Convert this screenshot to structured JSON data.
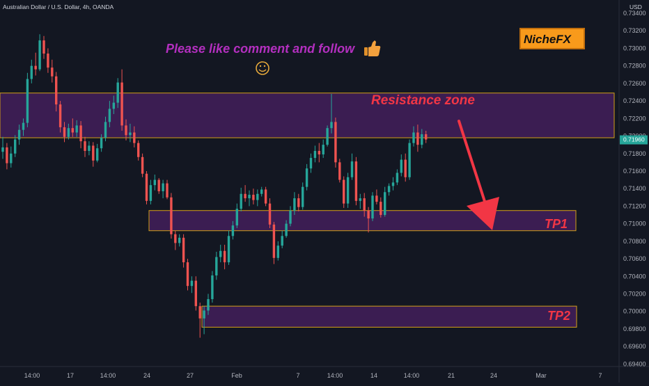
{
  "header": {
    "symbol_title": "Australian Dollar / U.S. Dollar, 4h, OANDA",
    "currency": "USD"
  },
  "annotations": {
    "cta": "Please like comment and follow",
    "thumbs_icon": "thumbs-up",
    "smile_icon": "smiley-face",
    "brand": "NicheFX",
    "resistance": "Resistance zone",
    "tp1": "TP1",
    "tp2": "TP2"
  },
  "current_price_label": "0.71960",
  "colors": {
    "background": "#131722",
    "up": "#26a69a",
    "down": "#ef5350",
    "zone_fill": "#4a2063",
    "zone_border": "#d4a017",
    "cta_text": "#b32fbf",
    "zone_text": "#f23645",
    "brand_text": "#111111",
    "brand_bg": "#f89a1b",
    "arrow": "#f23645",
    "grid": "#1e222d"
  },
  "chart_data": {
    "type": "candlestick",
    "title": "Australian Dollar / U.S. Dollar, 4h, OANDA",
    "y_unit": "USD",
    "ylim": [
      0.6932,
      0.7352
    ],
    "y_ticks": [
      "0.73400",
      "0.73200",
      "0.73000",
      "0.72800",
      "0.72600",
      "0.72400",
      "0.72200",
      "0.72000",
      "0.71800",
      "0.71600",
      "0.71400",
      "0.71200",
      "0.71000",
      "0.70800",
      "0.70600",
      "0.70400",
      "0.70200",
      "0.70000",
      "0.69800",
      "0.69600",
      "0.69400"
    ],
    "x_ticks": [
      "14:00",
      "17",
      "14:00",
      "24",
      "27",
      "Feb",
      "7",
      "14:00",
      "14",
      "14:00",
      "21",
      "24",
      "Mar",
      "7"
    ],
    "grid": false,
    "ohlc": [
      [
        0.7182,
        0.7199,
        0.7174,
        0.7187
      ],
      [
        0.7187,
        0.7192,
        0.7162,
        0.7169
      ],
      [
        0.7169,
        0.7188,
        0.7164,
        0.718
      ],
      [
        0.718,
        0.7201,
        0.7176,
        0.7196
      ],
      [
        0.7196,
        0.7213,
        0.719,
        0.7207
      ],
      [
        0.7207,
        0.722,
        0.72,
        0.7215
      ],
      [
        0.7215,
        0.7272,
        0.721,
        0.7265
      ],
      [
        0.7265,
        0.7287,
        0.726,
        0.728
      ],
      [
        0.728,
        0.7295,
        0.7269,
        0.7276
      ],
      [
        0.7276,
        0.7316,
        0.7274,
        0.7309
      ],
      [
        0.7309,
        0.7314,
        0.7288,
        0.7294
      ],
      [
        0.7294,
        0.73,
        0.7272,
        0.7278
      ],
      [
        0.7278,
        0.7287,
        0.7261,
        0.7268
      ],
      [
        0.7268,
        0.7273,
        0.7228,
        0.7236
      ],
      [
        0.7236,
        0.724,
        0.7204,
        0.721
      ],
      [
        0.721,
        0.7216,
        0.7193,
        0.7199
      ],
      [
        0.7199,
        0.7214,
        0.7196,
        0.7209
      ],
      [
        0.7209,
        0.722,
        0.7199,
        0.7204
      ],
      [
        0.7204,
        0.7218,
        0.7199,
        0.7212
      ],
      [
        0.7212,
        0.7217,
        0.7186,
        0.7194
      ],
      [
        0.7194,
        0.7199,
        0.7176,
        0.7183
      ],
      [
        0.7183,
        0.7194,
        0.7178,
        0.7189
      ],
      [
        0.7189,
        0.7193,
        0.7165,
        0.7172
      ],
      [
        0.7172,
        0.7191,
        0.717,
        0.7186
      ],
      [
        0.7186,
        0.7202,
        0.7182,
        0.7198
      ],
      [
        0.7198,
        0.7222,
        0.7194,
        0.7216
      ],
      [
        0.7216,
        0.724,
        0.721,
        0.7231
      ],
      [
        0.7231,
        0.7246,
        0.7225,
        0.7238
      ],
      [
        0.7238,
        0.7266,
        0.7232,
        0.7261
      ],
      [
        0.7261,
        0.7276,
        0.7206,
        0.7212
      ],
      [
        0.7212,
        0.7219,
        0.7195,
        0.7201
      ],
      [
        0.7201,
        0.7214,
        0.7193,
        0.7204
      ],
      [
        0.7204,
        0.7211,
        0.7187,
        0.7192
      ],
      [
        0.7192,
        0.7195,
        0.7172,
        0.7176
      ],
      [
        0.7176,
        0.718,
        0.7153,
        0.7157
      ],
      [
        0.7157,
        0.716,
        0.7122,
        0.7126
      ],
      [
        0.7126,
        0.715,
        0.7122,
        0.7144
      ],
      [
        0.7144,
        0.7156,
        0.7138,
        0.715
      ],
      [
        0.715,
        0.7152,
        0.7134,
        0.7137
      ],
      [
        0.7137,
        0.715,
        0.7129,
        0.7146
      ],
      [
        0.7146,
        0.715,
        0.7128,
        0.713
      ],
      [
        0.713,
        0.7135,
        0.7083,
        0.7088
      ],
      [
        0.7088,
        0.7092,
        0.707,
        0.7078
      ],
      [
        0.7078,
        0.7088,
        0.7074,
        0.7084
      ],
      [
        0.7084,
        0.7088,
        0.705,
        0.7056
      ],
      [
        0.7056,
        0.706,
        0.7024,
        0.7029
      ],
      [
        0.7029,
        0.704,
        0.7021,
        0.7035
      ],
      [
        0.7035,
        0.704,
        0.7001,
        0.7006
      ],
      [
        0.7006,
        0.701,
        0.697,
        0.6992
      ],
      [
        0.6992,
        0.7006,
        0.6974,
        0.7001
      ],
      [
        0.7001,
        0.702,
        0.6996,
        0.7014
      ],
      [
        0.7014,
        0.7046,
        0.701,
        0.7041
      ],
      [
        0.7041,
        0.7068,
        0.7036,
        0.7062
      ],
      [
        0.7062,
        0.7076,
        0.7056,
        0.7069
      ],
      [
        0.7069,
        0.7076,
        0.7048,
        0.7056
      ],
      [
        0.7056,
        0.7092,
        0.7053,
        0.7086
      ],
      [
        0.7086,
        0.7103,
        0.7082,
        0.7098
      ],
      [
        0.7098,
        0.7123,
        0.7095,
        0.7117
      ],
      [
        0.7117,
        0.7141,
        0.7114,
        0.7134
      ],
      [
        0.7134,
        0.7144,
        0.7125,
        0.7129
      ],
      [
        0.7129,
        0.7138,
        0.712,
        0.7133
      ],
      [
        0.7133,
        0.714,
        0.7122,
        0.7127
      ],
      [
        0.7127,
        0.7139,
        0.712,
        0.7134
      ],
      [
        0.7134,
        0.7142,
        0.7131,
        0.7139
      ],
      [
        0.7139,
        0.7142,
        0.712,
        0.7123
      ],
      [
        0.7123,
        0.7129,
        0.7095,
        0.7099
      ],
      [
        0.7099,
        0.7102,
        0.7054,
        0.7061
      ],
      [
        0.7061,
        0.708,
        0.7058,
        0.7075
      ],
      [
        0.7075,
        0.7092,
        0.7072,
        0.7086
      ],
      [
        0.7086,
        0.7104,
        0.7084,
        0.71
      ],
      [
        0.71,
        0.712,
        0.7097,
        0.7115
      ],
      [
        0.7115,
        0.7136,
        0.711,
        0.7129
      ],
      [
        0.7129,
        0.7134,
        0.7114,
        0.7119
      ],
      [
        0.7119,
        0.7147,
        0.7116,
        0.7142
      ],
      [
        0.7142,
        0.7168,
        0.7138,
        0.7163
      ],
      [
        0.7163,
        0.718,
        0.7158,
        0.7175
      ],
      [
        0.7175,
        0.7189,
        0.717,
        0.7183
      ],
      [
        0.7183,
        0.7192,
        0.717,
        0.7179
      ],
      [
        0.7179,
        0.7196,
        0.7175,
        0.719
      ],
      [
        0.719,
        0.7212,
        0.7188,
        0.7209
      ],
      [
        0.7209,
        0.7248,
        0.7203,
        0.7216
      ],
      [
        0.7216,
        0.7221,
        0.7164,
        0.717
      ],
      [
        0.717,
        0.7174,
        0.7147,
        0.715
      ],
      [
        0.715,
        0.7154,
        0.7118,
        0.7123
      ],
      [
        0.7123,
        0.7158,
        0.7118,
        0.7153
      ],
      [
        0.7153,
        0.718,
        0.715,
        0.7171
      ],
      [
        0.7171,
        0.7176,
        0.7121,
        0.7126
      ],
      [
        0.7126,
        0.7134,
        0.7117,
        0.7129
      ],
      [
        0.7129,
        0.7135,
        0.7108,
        0.7115
      ],
      [
        0.7115,
        0.7119,
        0.709,
        0.7106
      ],
      [
        0.7106,
        0.7136,
        0.7103,
        0.7132
      ],
      [
        0.7132,
        0.7139,
        0.7122,
        0.7125
      ],
      [
        0.7125,
        0.713,
        0.7107,
        0.711
      ],
      [
        0.711,
        0.7142,
        0.7108,
        0.7136
      ],
      [
        0.7136,
        0.7146,
        0.7132,
        0.7143
      ],
      [
        0.7143,
        0.7153,
        0.7138,
        0.7147
      ],
      [
        0.7147,
        0.7162,
        0.7144,
        0.7158
      ],
      [
        0.7158,
        0.7179,
        0.7154,
        0.7173
      ],
      [
        0.7173,
        0.718,
        0.7148,
        0.7153
      ],
      [
        0.7153,
        0.7196,
        0.715,
        0.7192
      ],
      [
        0.7192,
        0.7211,
        0.7188,
        0.7204
      ],
      [
        0.7204,
        0.7213,
        0.7182,
        0.719
      ],
      [
        0.719,
        0.7208,
        0.7186,
        0.7202
      ],
      [
        0.7202,
        0.7206,
        0.7192,
        0.7196
      ]
    ],
    "zones": [
      {
        "label": "Resistance zone",
        "y_low": 0.7198,
        "y_high": 0.7249
      },
      {
        "label": "TP1",
        "y_low": 0.7092,
        "y_high": 0.7115
      },
      {
        "label": "TP2",
        "y_low": 0.6982,
        "y_high": 0.7006
      }
    ]
  }
}
